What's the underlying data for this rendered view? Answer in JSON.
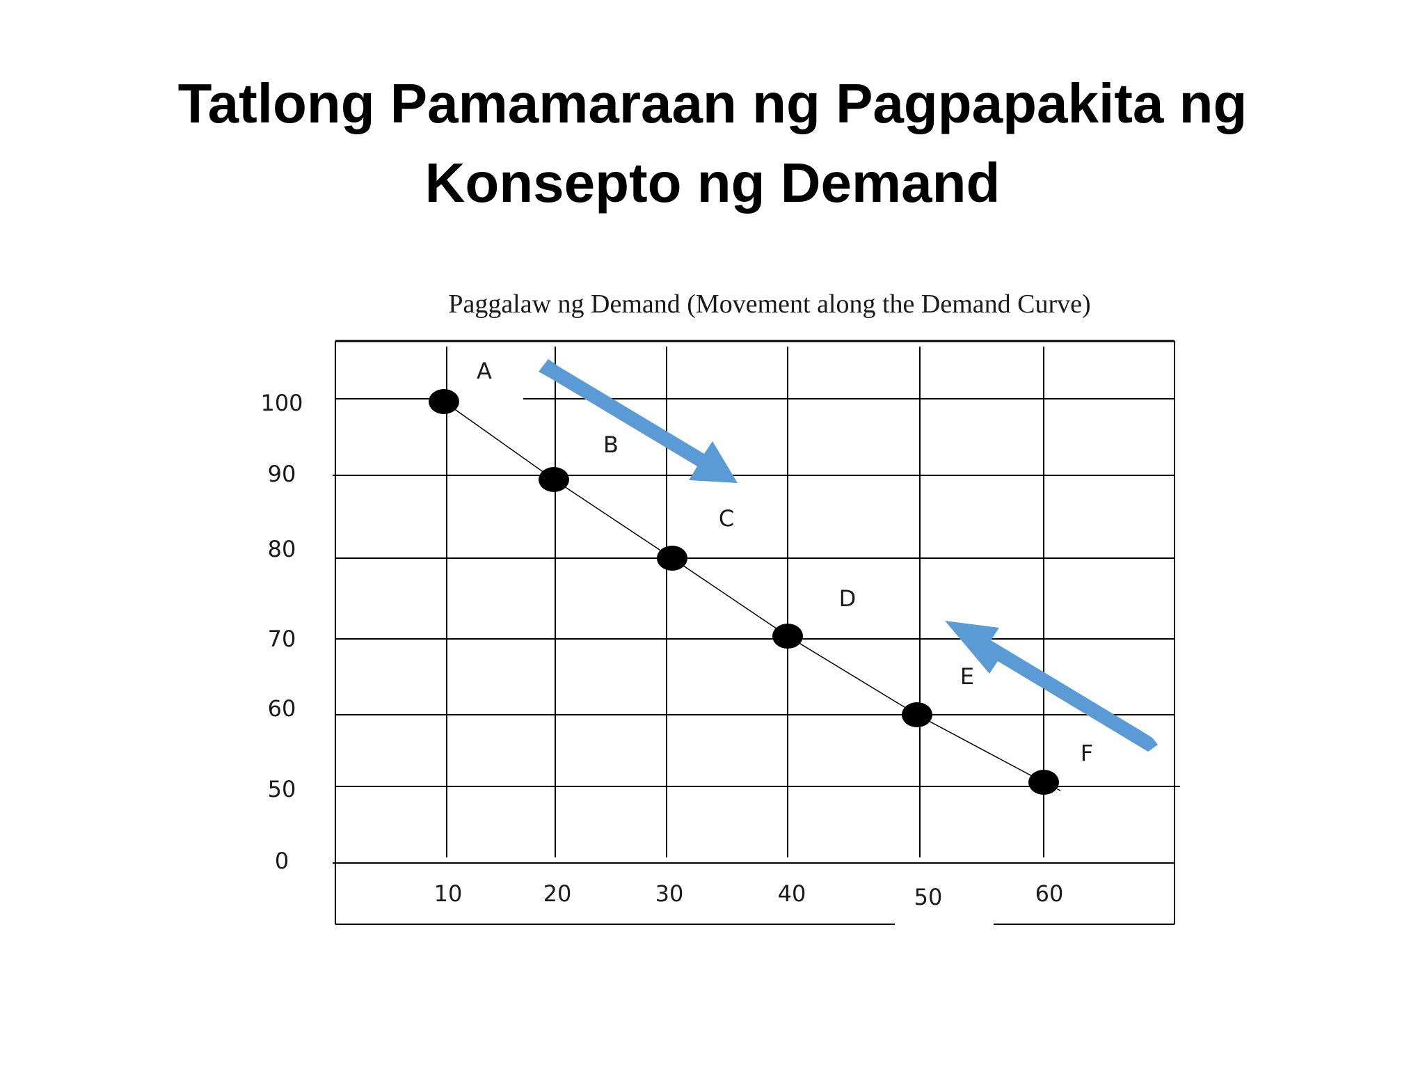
{
  "slide": {
    "title_line1": "Tatlong Pamamaraan ng Pagpapakita ng",
    "title_line2": "Konsepto ng Demand"
  },
  "chart_data": {
    "type": "line",
    "title": "Paggalaw ng Demand (Movement along the Demand Curve)",
    "xlabel": "",
    "ylabel": "",
    "x_ticks": [
      "10",
      "20",
      "30",
      "40",
      "50",
      "60"
    ],
    "y_ticks": [
      "0",
      "50",
      "60",
      "70",
      "80",
      "90",
      "100"
    ],
    "series": [
      {
        "points": [
          {
            "label": "A",
            "x": 10,
            "y": 100
          },
          {
            "label": "B",
            "x": 20,
            "y": 90
          },
          {
            "label": "C",
            "x": 30,
            "y": 80
          },
          {
            "label": "D",
            "x": 40,
            "y": 70
          },
          {
            "label": "E",
            "x": 50,
            "y": 60
          },
          {
            "label": "F",
            "x": 60,
            "y": 50
          }
        ]
      }
    ],
    "grid": true,
    "arrows": [
      {
        "direction": "down-right",
        "note": "movement along curve toward lower price"
      },
      {
        "direction": "up-left",
        "note": "movement along curve toward higher price"
      }
    ],
    "colors": {
      "points": "#000000",
      "line": "#000000",
      "grid": "#000000",
      "arrow": "#5B9BD5"
    }
  }
}
